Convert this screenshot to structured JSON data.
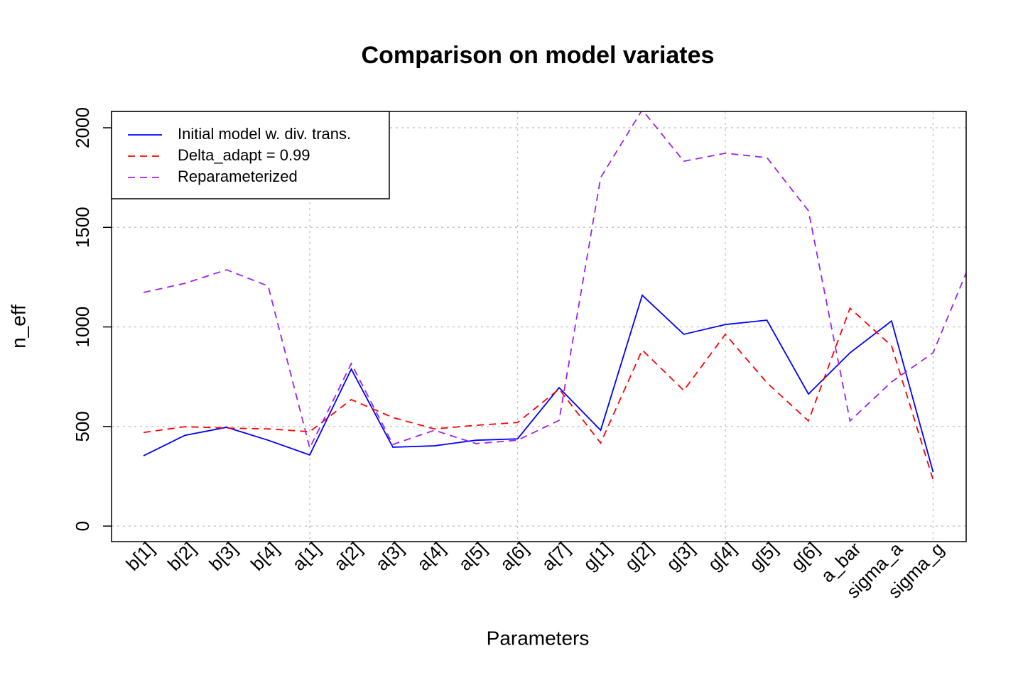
{
  "chart_data": {
    "type": "line",
    "title": "Comparison on model variates",
    "x_label": "Parameters",
    "y_label": "n_eff",
    "categories": [
      "b[1]",
      "b[2]",
      "b[3]",
      "b[4]",
      "a[1]",
      "a[2]",
      "a[3]",
      "a[4]",
      "a[5]",
      "a[6]",
      "a[7]",
      "g[1]",
      "g[2]",
      "g[3]",
      "g[4]",
      "g[5]",
      "g[6]",
      "a_bar",
      "sigma_a",
      "sigma_g",
      null
    ],
    "series": [
      {
        "name": "Initial model w. div. trans.",
        "color": "#0000ff",
        "line_style": "solid",
        "values": [
          353,
          456,
          496,
          431,
          357,
          788,
          396,
          403,
          431,
          438,
          695,
          481,
          1159,
          963,
          1012,
          1034,
          663,
          870,
          1030,
          271,
          null
        ]
      },
      {
        "name": "Delta_adapt = 0.99",
        "color": "#ff0000",
        "line_style": "dashed",
        "values": [
          470,
          499,
          492,
          488,
          474,
          635,
          545,
          488,
          506,
          520,
          688,
          417,
          884,
          681,
          963,
          720,
          528,
          1094,
          905,
          232,
          null
        ]
      },
      {
        "name": "Reparameterized",
        "color": "#a020f0",
        "line_style": "dashed",
        "values": [
          1173,
          1219,
          1287,
          1205,
          392,
          816,
          410,
          481,
          414,
          431,
          531,
          1750,
          2090,
          1832,
          1872,
          1850,
          1583,
          528,
          724,
          870,
          1376
        ]
      }
    ],
    "ylim": [
      -78,
      2082
    ],
    "yticks": [
      0,
      500,
      1000,
      1500,
      2000
    ],
    "x_grid_categories": [
      4,
      9,
      14,
      19
    ],
    "grid": true,
    "legend": "top-left"
  }
}
